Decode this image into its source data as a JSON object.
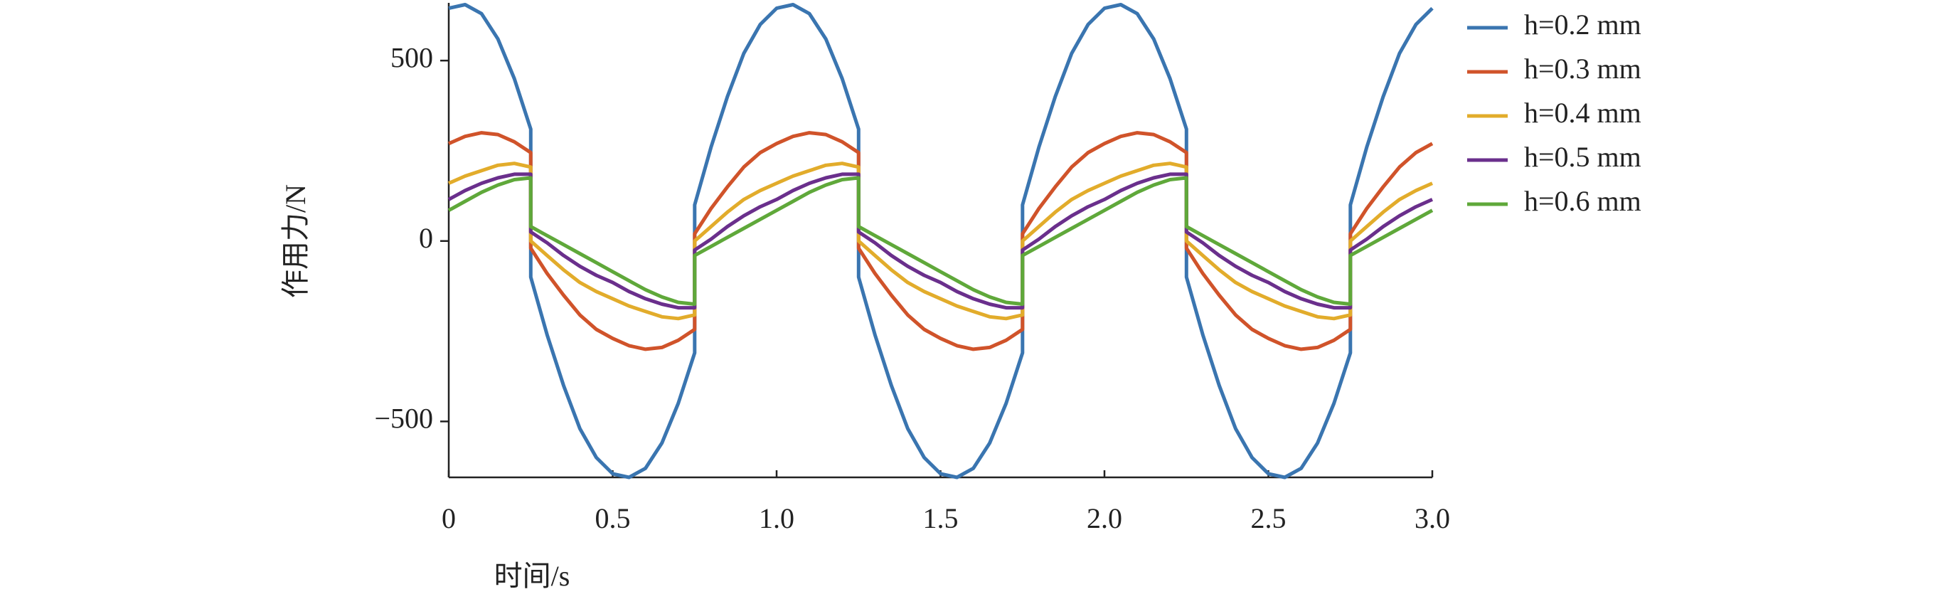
{
  "chart_data": {
    "type": "line",
    "xlabel": "时间/s",
    "ylabel": "作用力/N",
    "x": [
      0,
      0.05,
      0.1,
      0.15,
      0.2,
      0.25,
      0.25,
      0.3,
      0.35,
      0.4,
      0.45,
      0.5,
      0.55,
      0.6,
      0.65,
      0.7,
      0.75,
      0.75,
      0.8,
      0.85,
      0.9,
      0.95,
      1.0,
      1.05,
      1.1,
      1.15,
      1.2,
      1.25,
      1.25,
      1.3,
      1.35,
      1.4,
      1.45,
      1.5,
      1.55,
      1.6,
      1.65,
      1.7,
      1.75,
      1.75,
      1.8,
      1.85,
      1.9,
      1.95,
      2.0,
      2.05,
      2.1,
      2.15,
      2.2,
      2.25,
      2.25,
      2.3,
      2.35,
      2.4,
      2.45,
      2.5,
      2.55,
      2.6,
      2.65,
      2.7,
      2.75,
      2.75,
      2.8,
      2.85,
      2.9,
      2.95,
      3.0
    ],
    "series": [
      {
        "name": "h=0.2 mm",
        "color": "#3a75b0",
        "values": [
          645,
          655,
          630,
          560,
          450,
          310,
          -100,
          -260,
          -400,
          -520,
          -600,
          -645,
          -655,
          -630,
          -560,
          -450,
          -310,
          100,
          260,
          400,
          520,
          600,
          645,
          655,
          630,
          560,
          450,
          310,
          -100,
          -260,
          -400,
          -520,
          -600,
          -645,
          -655,
          -630,
          -560,
          -450,
          -310,
          100,
          260,
          400,
          520,
          600,
          645,
          655,
          630,
          560,
          450,
          310,
          -100,
          -260,
          -400,
          -520,
          -600,
          -645,
          -655,
          -630,
          -560,
          -450,
          -310,
          100,
          260,
          400,
          520,
          600,
          645
        ]
      },
      {
        "name": "h=0.3 mm",
        "color": "#d0532a",
        "values": [
          270,
          290,
          300,
          295,
          275,
          245,
          -20,
          -90,
          -150,
          -205,
          -245,
          -270,
          -290,
          -300,
          -295,
          -275,
          -245,
          20,
          90,
          150,
          205,
          245,
          270,
          290,
          300,
          295,
          275,
          245,
          -20,
          -90,
          -150,
          -205,
          -245,
          -270,
          -290,
          -300,
          -295,
          -275,
          -245,
          20,
          90,
          150,
          205,
          245,
          270,
          290,
          300,
          295,
          275,
          245,
          -20,
          -90,
          -150,
          -205,
          -245,
          -270,
          -290,
          -300,
          -295,
          -275,
          -245,
          20,
          90,
          150,
          205,
          245,
          270
        ]
      },
      {
        "name": "h=0.4 mm",
        "color": "#e2ac2b",
        "values": [
          160,
          180,
          195,
          210,
          215,
          205,
          0,
          -40,
          -80,
          -115,
          -140,
          -160,
          -180,
          -195,
          -210,
          -215,
          -205,
          0,
          40,
          80,
          115,
          140,
          160,
          180,
          195,
          210,
          215,
          205,
          0,
          -40,
          -80,
          -115,
          -140,
          -160,
          -180,
          -195,
          -210,
          -215,
          -205,
          0,
          40,
          80,
          115,
          140,
          160,
          180,
          195,
          210,
          215,
          205,
          0,
          -40,
          -80,
          -115,
          -140,
          -160,
          -180,
          -195,
          -210,
          -215,
          -205,
          0,
          40,
          80,
          115,
          140,
          160
        ]
      },
      {
        "name": "h=0.5 mm",
        "color": "#6a2f8c",
        "values": [
          115,
          140,
          160,
          175,
          185,
          185,
          25,
          -5,
          -40,
          -70,
          -95,
          -115,
          -140,
          -160,
          -175,
          -185,
          -185,
          -25,
          5,
          40,
          70,
          95,
          115,
          140,
          160,
          175,
          185,
          185,
          25,
          -5,
          -40,
          -70,
          -95,
          -115,
          -140,
          -160,
          -175,
          -185,
          -185,
          -25,
          5,
          40,
          70,
          95,
          115,
          140,
          160,
          175,
          185,
          185,
          25,
          -5,
          -40,
          -70,
          -95,
          -115,
          -140,
          -160,
          -175,
          -185,
          -185,
          -25,
          5,
          40,
          70,
          95,
          115
        ]
      },
      {
        "name": "h=0.6 mm",
        "color": "#5fa83a",
        "values": [
          85,
          110,
          135,
          155,
          170,
          175,
          40,
          15,
          -10,
          -35,
          -60,
          -85,
          -110,
          -135,
          -155,
          -170,
          -175,
          -40,
          -15,
          10,
          35,
          60,
          85,
          110,
          135,
          155,
          170,
          175,
          40,
          15,
          -10,
          -35,
          -60,
          -85,
          -110,
          -135,
          -155,
          -170,
          -175,
          -40,
          -15,
          10,
          35,
          60,
          85,
          110,
          135,
          155,
          170,
          175,
          40,
          15,
          -10,
          -35,
          -60,
          -85,
          -110,
          -135,
          -155,
          -170,
          -175,
          -40,
          -15,
          10,
          35,
          60,
          85
        ]
      }
    ],
    "xlim": [
      0,
      3
    ],
    "xticks": [
      0,
      0.5,
      {
        "value": 1,
        "label": "1.0"
      },
      1.5,
      {
        "value": 2,
        "label": "2.0"
      },
      2.5,
      {
        "value": 3,
        "label": "3.0"
      }
    ],
    "ylim": [
      -655,
      660
    ],
    "yticks": [
      {
        "value": -500,
        "label": "−500"
      },
      0,
      500
    ]
  }
}
